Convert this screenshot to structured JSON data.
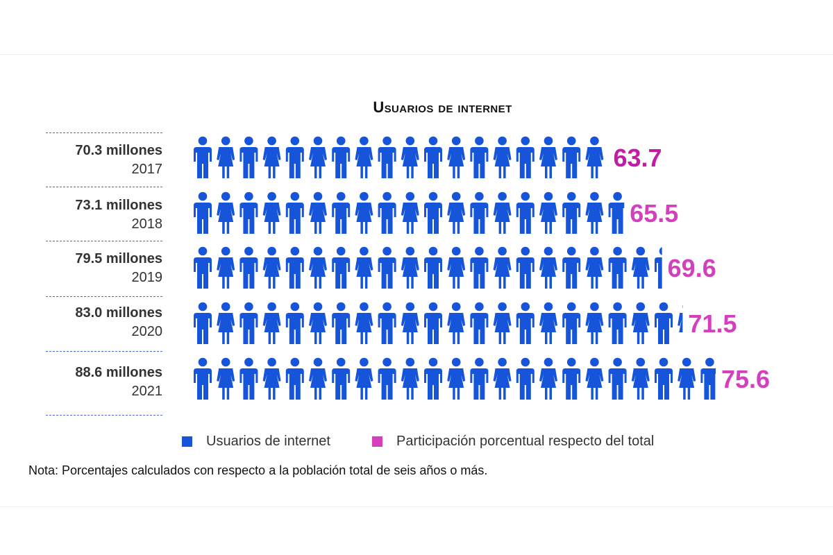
{
  "chart_data": {
    "type": "bar",
    "title": "Usuarios de internet",
    "categories": [
      "2017",
      "2018",
      "2019",
      "2020",
      "2021"
    ],
    "rows": [
      {
        "year": "2017",
        "users_label": "70.3 millones",
        "users_millions": 70.3,
        "pct_label": "63.7",
        "pct": 63.7
      },
      {
        "year": "2018",
        "users_label": "73.1 millones",
        "users_millions": 73.1,
        "pct_label": "65.5",
        "pct": 65.5
      },
      {
        "year": "2019",
        "users_label": "79.5 millones",
        "users_millions": 79.5,
        "pct_label": "69.6",
        "pct": 69.6
      },
      {
        "year": "2020",
        "users_label": "83.0 millones",
        "users_millions": 83.0,
        "pct_label": "71.5",
        "pct": 71.5
      },
      {
        "year": "2021",
        "users_label": "88.6 millones",
        "users_millions": 88.6,
        "pct_label": "75.6",
        "pct": 75.6
      }
    ],
    "series": [
      {
        "name": "Usuarios de internet",
        "color": "#1655d9",
        "values": [
          70.3,
          73.1,
          79.5,
          83.0,
          88.6
        ]
      },
      {
        "name": "Participación porcentual respecto del total",
        "color": "#d53fbd",
        "values": [
          63.7,
          65.5,
          69.6,
          71.5,
          75.6
        ]
      }
    ],
    "legend_position": "bottom",
    "grid": false
  },
  "colors": {
    "icon": "#1655d9",
    "pct_darkest": "#c51aa6",
    "pct": "#d53fbd",
    "separator": "#4a6bd6"
  },
  "legend": [
    {
      "label": "Usuarios de internet",
      "color": "#1655d9"
    },
    {
      "label": "Participación porcentual respecto del total",
      "color": "#d53fbd"
    }
  ],
  "note": "Nota: Porcentajes calculados con respecto a la población total de seis años o más."
}
